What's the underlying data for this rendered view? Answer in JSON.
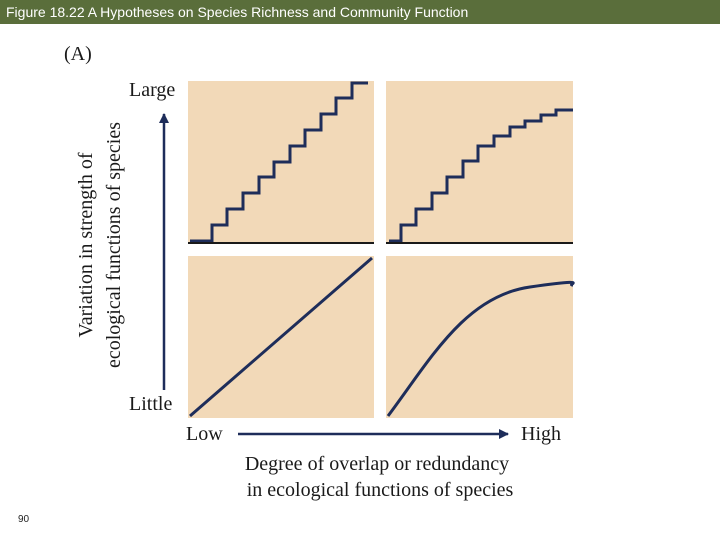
{
  "slide": {
    "title": "Figure 18.22 A  Hypotheses on Species Richness and Community Function",
    "page_number": "90"
  },
  "figure": {
    "panel_label": "(A)",
    "y_axis": {
      "line1": "Variation in strength of",
      "line2": "ecological functions of species",
      "top_label": "Large",
      "bottom_label": "Little"
    },
    "x_axis": {
      "left_label": "Low",
      "right_label": "High",
      "line1": "Degree of overlap or redundancy",
      "line2": "in ecological functions of species"
    },
    "colors": {
      "panel_fill": "#f2d9b8",
      "curve": "#1e2d5a",
      "title_bar": "#5a6e3b"
    },
    "panels": [
      {
        "position": "top-left",
        "curve": "linear-stepped"
      },
      {
        "position": "top-right",
        "curve": "saturating-stepped"
      },
      {
        "position": "bottom-left",
        "curve": "linear"
      },
      {
        "position": "bottom-right",
        "curve": "saturating"
      }
    ]
  }
}
